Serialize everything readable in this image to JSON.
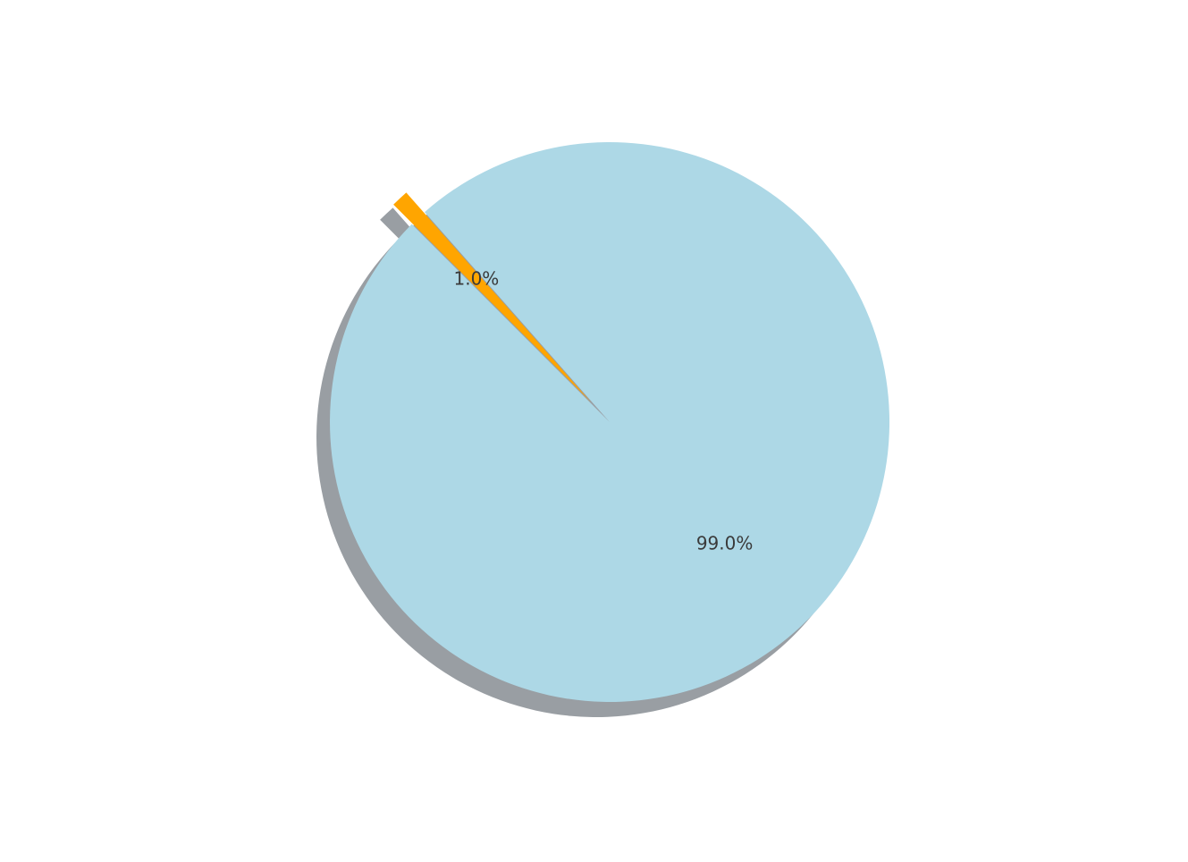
{
  "chart_data": {
    "type": "pie",
    "slices": [
      {
        "value": 99.0,
        "label_text": "99.0%",
        "color": "#add8e6",
        "exploded": false
      },
      {
        "value": 1.0,
        "label_text": "1.0%",
        "color": "#ffa500",
        "exploded": true
      }
    ],
    "start_angle_deg": 135,
    "direction": "counterclockwise",
    "shadow": true,
    "shadow_color": "#999ea3",
    "legend": "none"
  }
}
